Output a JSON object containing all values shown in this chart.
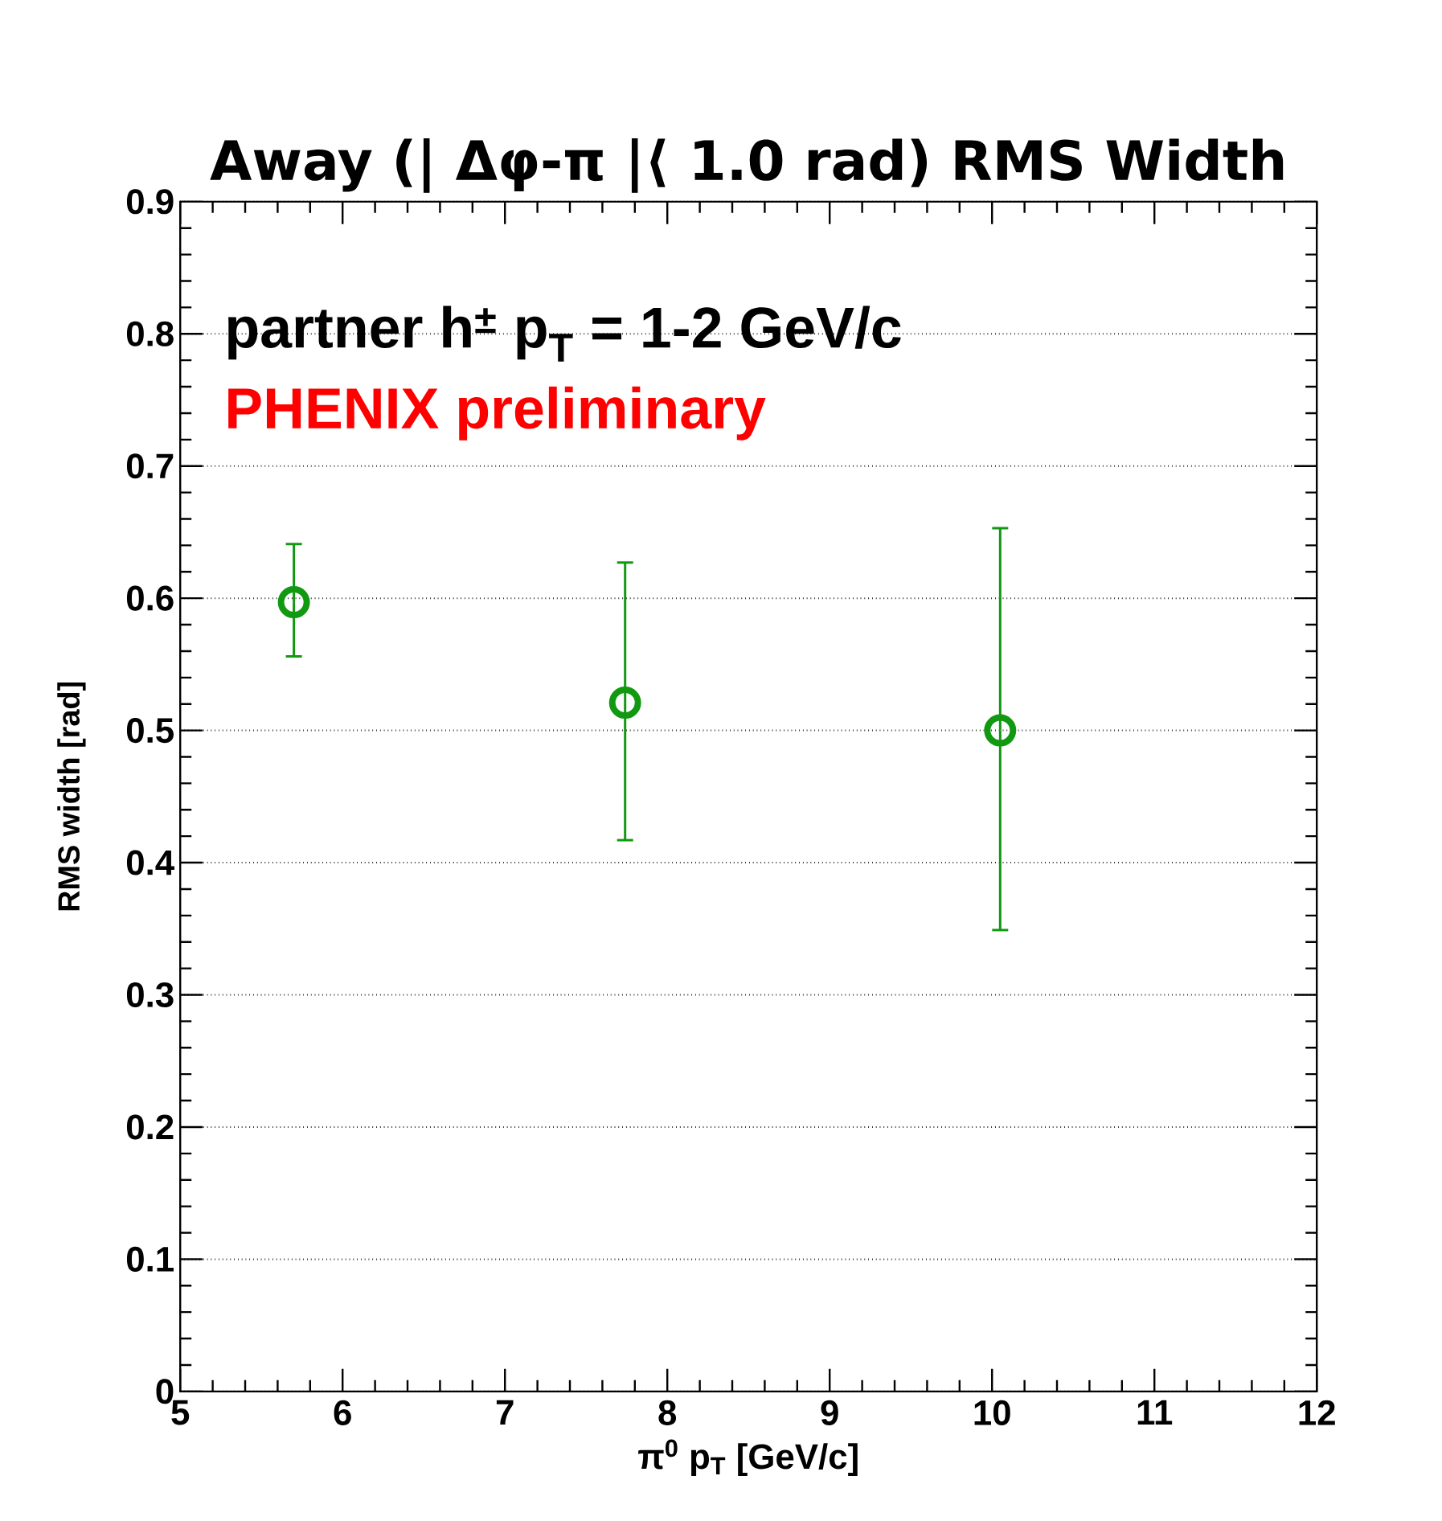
{
  "chart_data": {
    "type": "scatter",
    "title": "Away (| Δφ-π |⟨ 1.0 rad) RMS Width",
    "xlabel": "π$^{0}$ p$_{T}$ [GeV/c]",
    "ylabel": "RMS width [rad]",
    "annotations": [
      "partner h$^{±}$ p$_{T}$ = 1-2 GeV/c",
      "PHENIX preliminary"
    ],
    "x": [
      5.7,
      7.74,
      10.05
    ],
    "series": [
      {
        "color": "#119911",
        "values": [
          0.597,
          0.521,
          0.5
        ],
        "errors": [
          [
            0.556,
            0.641
          ],
          [
            0.417,
            0.627
          ],
          [
            0.349,
            0.653
          ]
        ]
      }
    ],
    "xlim": [
      5,
      12
    ],
    "xticks": [
      5,
      6,
      7,
      8,
      9,
      10,
      11,
      12
    ],
    "ylim": [
      0,
      0.9
    ],
    "yticks": [
      0,
      0.1,
      0.2,
      0.3,
      0.4,
      0.5,
      0.6,
      0.7,
      0.8,
      0.9
    ],
    "grid": "y",
    "marker": "circle"
  }
}
